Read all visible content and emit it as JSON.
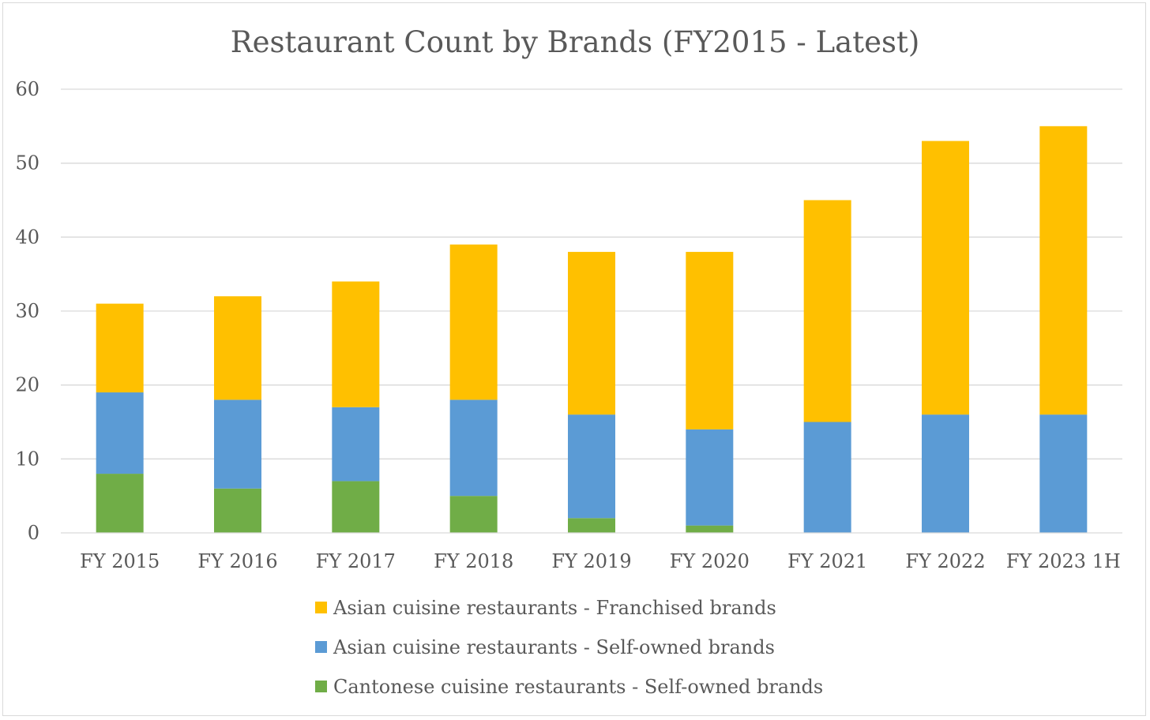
{
  "chart_data": {
    "type": "bar",
    "stacked": true,
    "title": "Restaurant Count by Brands (FY2015 - Latest)",
    "xlabel": "",
    "ylabel": "",
    "ylim": [
      0,
      60
    ],
    "yticks": [
      "0",
      "10",
      "20",
      "30",
      "40",
      "50",
      "60"
    ],
    "grid": true,
    "legend_position": "bottom",
    "categories": [
      "FY 2015",
      "FY 2016",
      "FY 2017",
      "FY 2018",
      "FY 2019",
      "FY 2020",
      "FY 2021",
      "FY 2022",
      "FY 2023 1H"
    ],
    "series": [
      {
        "name": "Cantonese cuisine restaurants - Self-owned brands",
        "color": "#70ad47",
        "values": [
          8,
          6,
          7,
          5,
          2,
          1,
          0,
          0,
          0
        ]
      },
      {
        "name": "Asian cuisine restaurants - Self-owned brands",
        "color": "#5b9bd5",
        "values": [
          11,
          12,
          10,
          13,
          14,
          13,
          15,
          16,
          16
        ]
      },
      {
        "name": "Asian cuisine restaurants - Franchised brands",
        "color": "#ffc000",
        "values": [
          12,
          14,
          17,
          21,
          22,
          24,
          30,
          37,
          39
        ]
      }
    ],
    "legend_order": [
      2,
      1,
      0
    ]
  }
}
